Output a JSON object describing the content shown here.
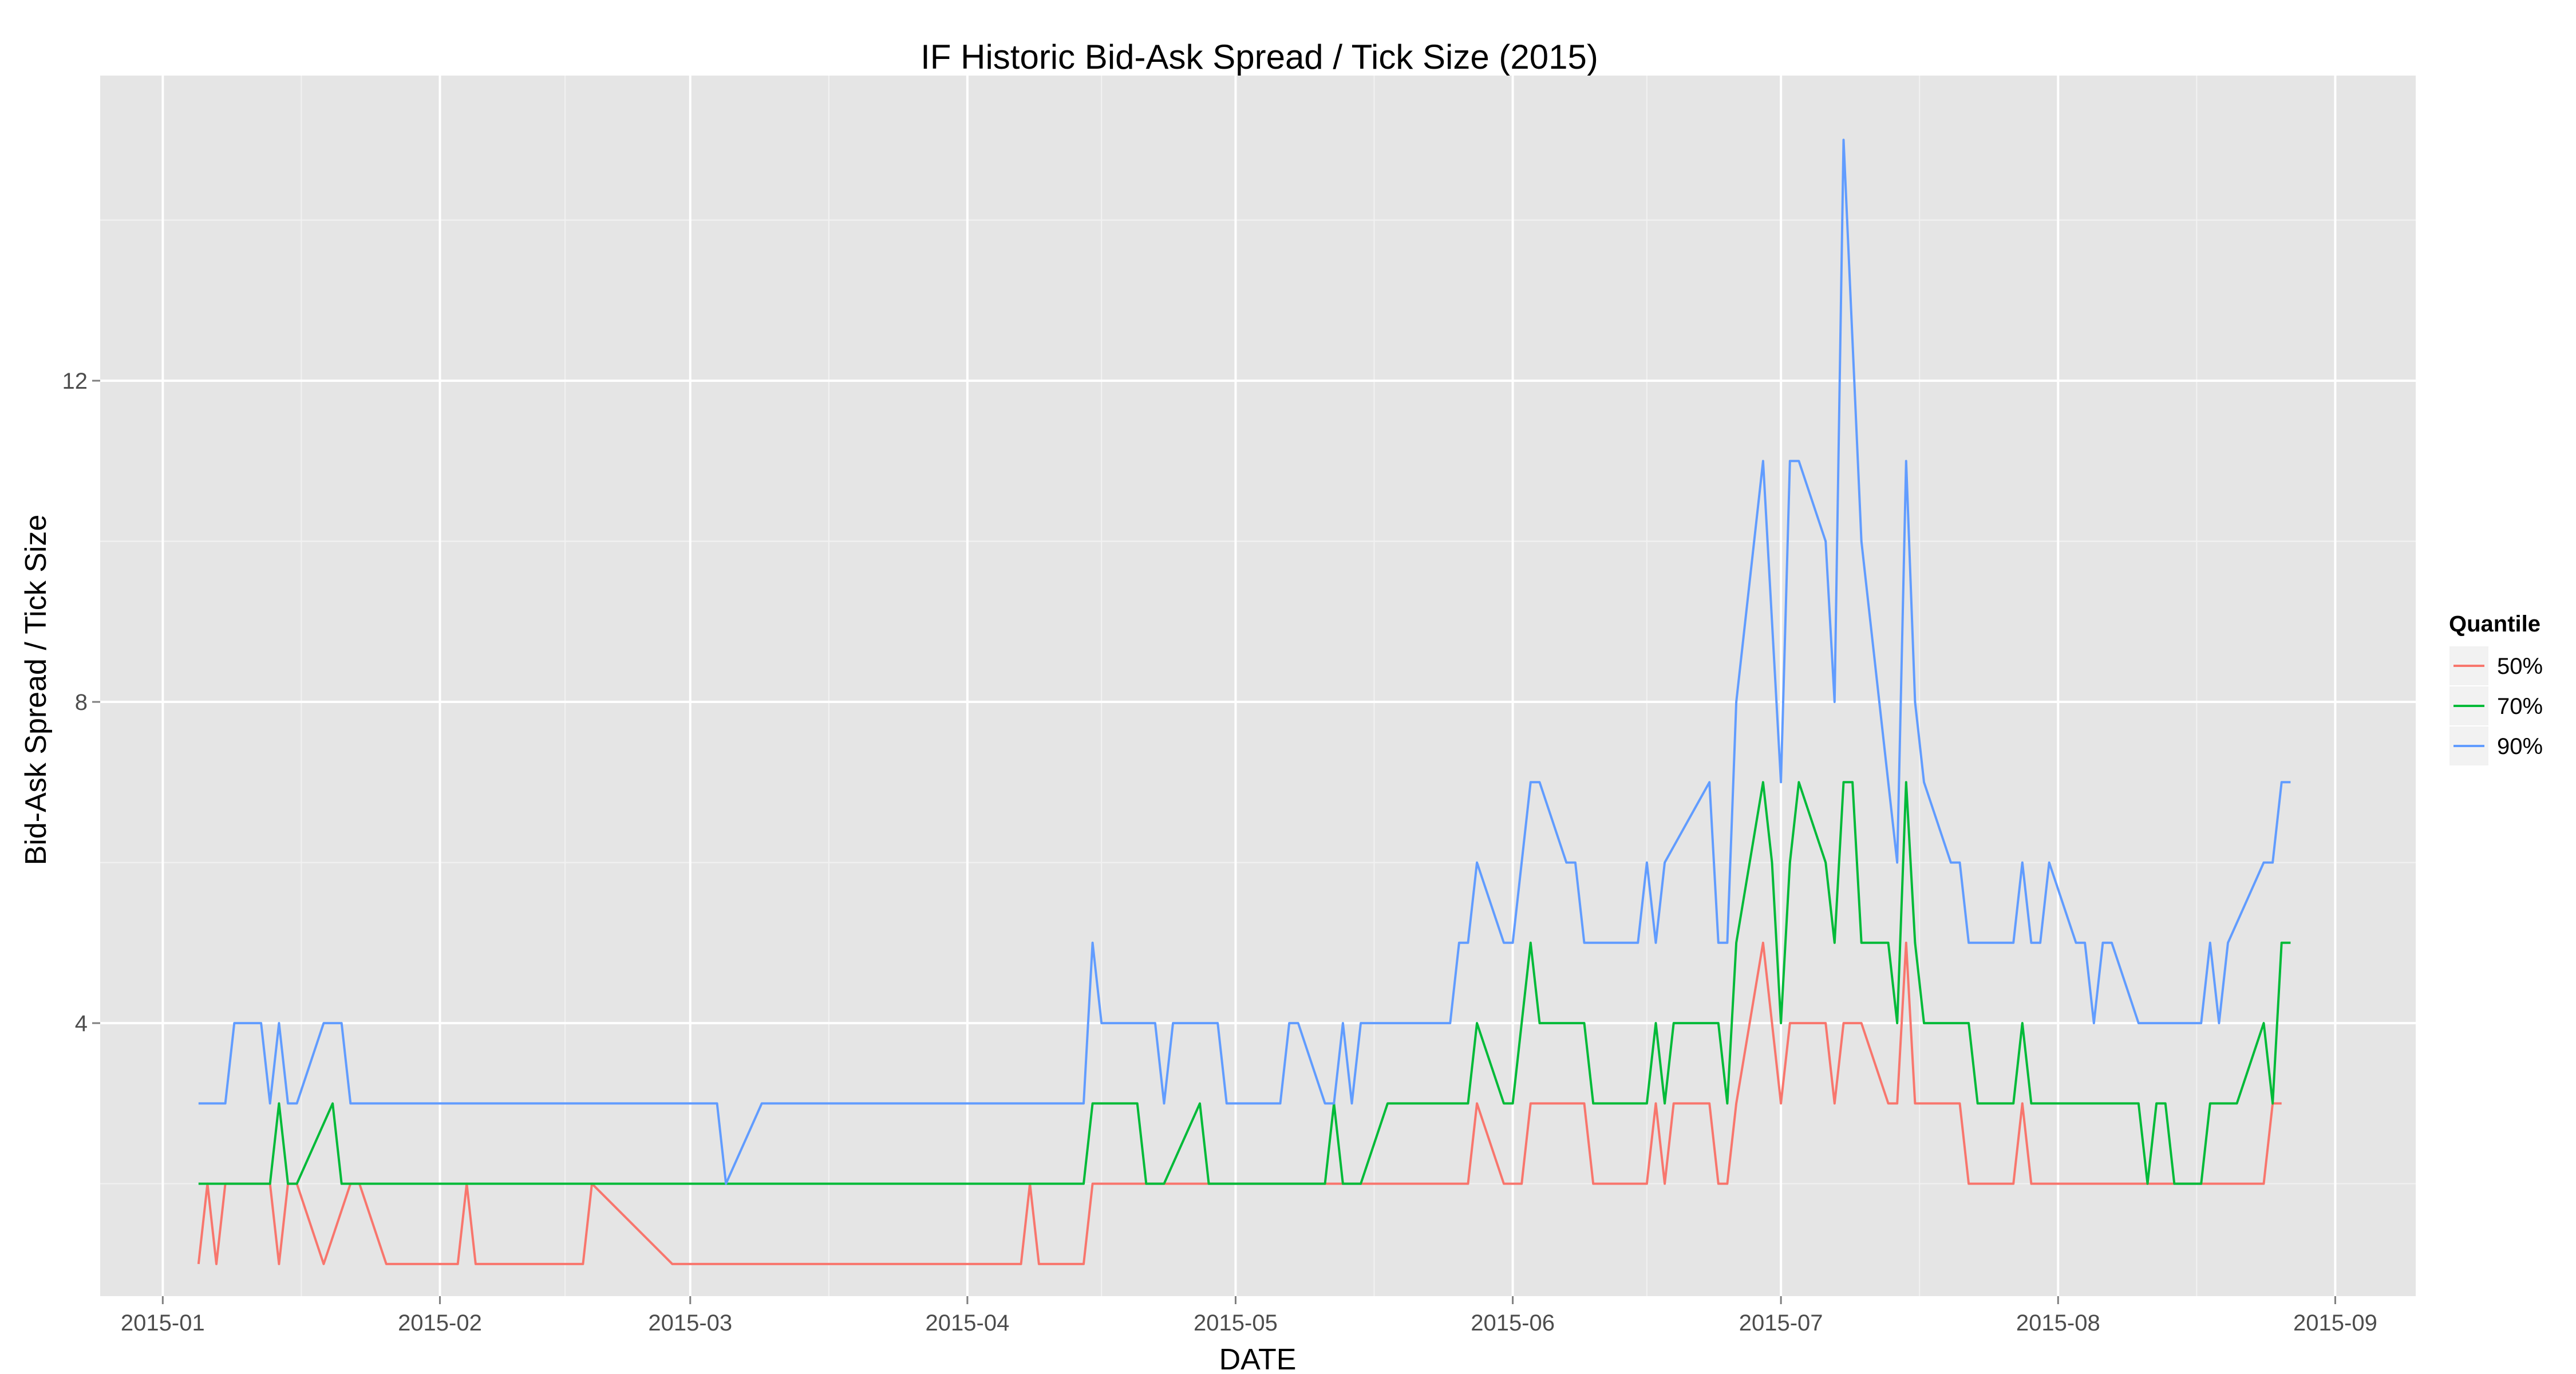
{
  "chart_data": {
    "type": "line",
    "title": "IF Historic Bid-Ask Spread / Tick Size (2015)",
    "xlabel": "DATE",
    "ylabel": "Bid-Ask Spread / Tick Size",
    "x_ticks": [
      "2015-01",
      "2015-02",
      "2015-03",
      "2015-04",
      "2015-05",
      "2015-06",
      "2015-07",
      "2015-08",
      "2015-09"
    ],
    "y_ticks": [
      4,
      8,
      12
    ],
    "ylim": [
      0.6,
      15.8
    ],
    "xlim": [
      "2014-12-25",
      "2015-09-10"
    ],
    "grid": true,
    "legend": {
      "title": "Quantile",
      "position": "right"
    },
    "series": [
      {
        "name": "50%",
        "color": "#F8766D",
        "points": [
          [
            "2015-01-05",
            1
          ],
          [
            "2015-01-06",
            2
          ],
          [
            "2015-01-07",
            1
          ],
          [
            "2015-01-08",
            2
          ],
          [
            "2015-01-13",
            2
          ],
          [
            "2015-01-14",
            1
          ],
          [
            "2015-01-15",
            2
          ],
          [
            "2015-01-16",
            2
          ],
          [
            "2015-01-19",
            1
          ],
          [
            "2015-01-22",
            2
          ],
          [
            "2015-01-23",
            2
          ],
          [
            "2015-01-26",
            1
          ],
          [
            "2015-02-03",
            1
          ],
          [
            "2015-02-04",
            2
          ],
          [
            "2015-02-05",
            1
          ],
          [
            "2015-02-17",
            1
          ],
          [
            "2015-02-18",
            2
          ],
          [
            "2015-02-27",
            1
          ],
          [
            "2015-04-07",
            1
          ],
          [
            "2015-04-08",
            2
          ],
          [
            "2015-04-09",
            1
          ],
          [
            "2015-04-14",
            1
          ],
          [
            "2015-04-15",
            2
          ],
          [
            "2015-05-26",
            2
          ],
          [
            "2015-05-27",
            2
          ],
          [
            "2015-05-28",
            3
          ],
          [
            "2015-05-31",
            2
          ],
          [
            "2015-06-01",
            2
          ],
          [
            "2015-06-02",
            2
          ],
          [
            "2015-06-03",
            3
          ],
          [
            "2015-06-08",
            3
          ],
          [
            "2015-06-09",
            3
          ],
          [
            "2015-06-10",
            2
          ],
          [
            "2015-06-16",
            2
          ],
          [
            "2015-06-17",
            3
          ],
          [
            "2015-06-18",
            2
          ],
          [
            "2015-06-19",
            3
          ],
          [
            "2015-06-23",
            3
          ],
          [
            "2015-06-24",
            2
          ],
          [
            "2015-06-25",
            2
          ],
          [
            "2015-06-26",
            3
          ],
          [
            "2015-06-29",
            5
          ],
          [
            "2015-06-30",
            4
          ],
          [
            "2015-07-01",
            3
          ],
          [
            "2015-07-02",
            4
          ],
          [
            "2015-07-06",
            4
          ],
          [
            "2015-07-07",
            3
          ],
          [
            "2015-07-08",
            4
          ],
          [
            "2015-07-10",
            4
          ],
          [
            "2015-07-13",
            3
          ],
          [
            "2015-07-14",
            3
          ],
          [
            "2015-07-15",
            5
          ],
          [
            "2015-07-16",
            3
          ],
          [
            "2015-07-21",
            3
          ],
          [
            "2015-07-22",
            2
          ],
          [
            "2015-07-27",
            2
          ],
          [
            "2015-07-28",
            3
          ],
          [
            "2015-07-29",
            2
          ],
          [
            "2015-08-24",
            2
          ],
          [
            "2015-08-25",
            3
          ],
          [
            "2015-08-26",
            3
          ]
        ]
      },
      {
        "name": "70%",
        "color": "#00BA38",
        "points": [
          [
            "2015-01-05",
            2
          ],
          [
            "2015-01-13",
            2
          ],
          [
            "2015-01-14",
            3
          ],
          [
            "2015-01-15",
            2
          ],
          [
            "2015-01-16",
            2
          ],
          [
            "2015-01-20",
            3
          ],
          [
            "2015-01-21",
            2
          ],
          [
            "2015-04-14",
            2
          ],
          [
            "2015-04-15",
            3
          ],
          [
            "2015-04-20",
            3
          ],
          [
            "2015-04-21",
            2
          ],
          [
            "2015-04-23",
            2
          ],
          [
            "2015-04-27",
            3
          ],
          [
            "2015-04-28",
            2
          ],
          [
            "2015-05-11",
            2
          ],
          [
            "2015-05-12",
            3
          ],
          [
            "2015-05-13",
            2
          ],
          [
            "2015-05-15",
            2
          ],
          [
            "2015-05-18",
            3
          ],
          [
            "2015-05-27",
            3
          ],
          [
            "2015-05-28",
            4
          ],
          [
            "2015-05-31",
            3
          ],
          [
            "2015-06-01",
            3
          ],
          [
            "2015-06-03",
            5
          ],
          [
            "2015-06-04",
            4
          ],
          [
            "2015-06-08",
            4
          ],
          [
            "2015-06-09",
            4
          ],
          [
            "2015-06-10",
            3
          ],
          [
            "2015-06-16",
            3
          ],
          [
            "2015-06-17",
            4
          ],
          [
            "2015-06-18",
            3
          ],
          [
            "2015-06-19",
            4
          ],
          [
            "2015-06-24",
            4
          ],
          [
            "2015-06-25",
            3
          ],
          [
            "2015-06-26",
            5
          ],
          [
            "2015-06-29",
            7
          ],
          [
            "2015-06-30",
            6
          ],
          [
            "2015-07-01",
            4
          ],
          [
            "2015-07-02",
            6
          ],
          [
            "2015-07-03",
            7
          ],
          [
            "2015-07-06",
            6
          ],
          [
            "2015-07-07",
            5
          ],
          [
            "2015-07-08",
            7
          ],
          [
            "2015-07-09",
            7
          ],
          [
            "2015-07-10",
            5
          ],
          [
            "2015-07-13",
            5
          ],
          [
            "2015-07-14",
            4
          ],
          [
            "2015-07-15",
            7
          ],
          [
            "2015-07-16",
            5
          ],
          [
            "2015-07-17",
            4
          ],
          [
            "2015-07-22",
            4
          ],
          [
            "2015-07-23",
            3
          ],
          [
            "2015-07-27",
            3
          ],
          [
            "2015-07-28",
            4
          ],
          [
            "2015-07-29",
            3
          ],
          [
            "2015-08-10",
            3
          ],
          [
            "2015-08-11",
            2
          ],
          [
            "2015-08-12",
            3
          ],
          [
            "2015-08-13",
            3
          ],
          [
            "2015-08-14",
            2
          ],
          [
            "2015-08-17",
            2
          ],
          [
            "2015-08-18",
            3
          ],
          [
            "2015-08-21",
            3
          ],
          [
            "2015-08-24",
            4
          ],
          [
            "2015-08-25",
            3
          ],
          [
            "2015-08-26",
            5
          ],
          [
            "2015-08-27",
            5
          ]
        ]
      },
      {
        "name": "90%",
        "color": "#619CFF",
        "points": [
          [
            "2015-01-05",
            3
          ],
          [
            "2015-01-08",
            3
          ],
          [
            "2015-01-09",
            4
          ],
          [
            "2015-01-12",
            4
          ],
          [
            "2015-01-13",
            3
          ],
          [
            "2015-01-14",
            4
          ],
          [
            "2015-01-15",
            3
          ],
          [
            "2015-01-16",
            3
          ],
          [
            "2015-01-19",
            4
          ],
          [
            "2015-01-21",
            4
          ],
          [
            "2015-01-22",
            3
          ],
          [
            "2015-03-04",
            3
          ],
          [
            "2015-03-05",
            2
          ],
          [
            "2015-03-09",
            3
          ],
          [
            "2015-04-14",
            3
          ],
          [
            "2015-04-15",
            5
          ],
          [
            "2015-04-16",
            4
          ],
          [
            "2015-04-22",
            4
          ],
          [
            "2015-04-23",
            3
          ],
          [
            "2015-04-24",
            4
          ],
          [
            "2015-04-29",
            4
          ],
          [
            "2015-04-30",
            3
          ],
          [
            "2015-05-06",
            3
          ],
          [
            "2015-05-07",
            4
          ],
          [
            "2015-05-08",
            4
          ],
          [
            "2015-05-11",
            3
          ],
          [
            "2015-05-12",
            3
          ],
          [
            "2015-05-13",
            4
          ],
          [
            "2015-05-14",
            3
          ],
          [
            "2015-05-15",
            4
          ],
          [
            "2015-05-25",
            4
          ],
          [
            "2015-05-26",
            5
          ],
          [
            "2015-05-27",
            5
          ],
          [
            "2015-05-28",
            6
          ],
          [
            "2015-05-31",
            5
          ],
          [
            "2015-06-01",
            5
          ],
          [
            "2015-06-03",
            7
          ],
          [
            "2015-06-04",
            7
          ],
          [
            "2015-06-07",
            6
          ],
          [
            "2015-06-08",
            6
          ],
          [
            "2015-06-09",
            5
          ],
          [
            "2015-06-15",
            5
          ],
          [
            "2015-06-16",
            6
          ],
          [
            "2015-06-17",
            5
          ],
          [
            "2015-06-18",
            6
          ],
          [
            "2015-06-23",
            7
          ],
          [
            "2015-06-24",
            5
          ],
          [
            "2015-06-25",
            5
          ],
          [
            "2015-06-26",
            8
          ],
          [
            "2015-06-29",
            11
          ],
          [
            "2015-06-30",
            9
          ],
          [
            "2015-07-01",
            7
          ],
          [
            "2015-07-02",
            11
          ],
          [
            "2015-07-03",
            11
          ],
          [
            "2015-07-06",
            10
          ],
          [
            "2015-07-07",
            8
          ],
          [
            "2015-07-08",
            15
          ],
          [
            "2015-07-10",
            10
          ],
          [
            "2015-07-14",
            6
          ],
          [
            "2015-07-15",
            11
          ],
          [
            "2015-07-16",
            8
          ],
          [
            "2015-07-17",
            7
          ],
          [
            "2015-07-20",
            6
          ],
          [
            "2015-07-21",
            6
          ],
          [
            "2015-07-22",
            5
          ],
          [
            "2015-07-27",
            5
          ],
          [
            "2015-07-28",
            6
          ],
          [
            "2015-07-29",
            5
          ],
          [
            "2015-07-30",
            5
          ],
          [
            "2015-07-31",
            6
          ],
          [
            "2015-08-03",
            5
          ],
          [
            "2015-08-04",
            5
          ],
          [
            "2015-08-05",
            4
          ],
          [
            "2015-08-06",
            5
          ],
          [
            "2015-08-07",
            5
          ],
          [
            "2015-08-10",
            4
          ],
          [
            "2015-08-17",
            4
          ],
          [
            "2015-08-18",
            5
          ],
          [
            "2015-08-19",
            4
          ],
          [
            "2015-08-20",
            5
          ],
          [
            "2015-08-24",
            6
          ],
          [
            "2015-08-25",
            6
          ],
          [
            "2015-08-26",
            7
          ],
          [
            "2015-08-27",
            7
          ]
        ]
      }
    ]
  }
}
